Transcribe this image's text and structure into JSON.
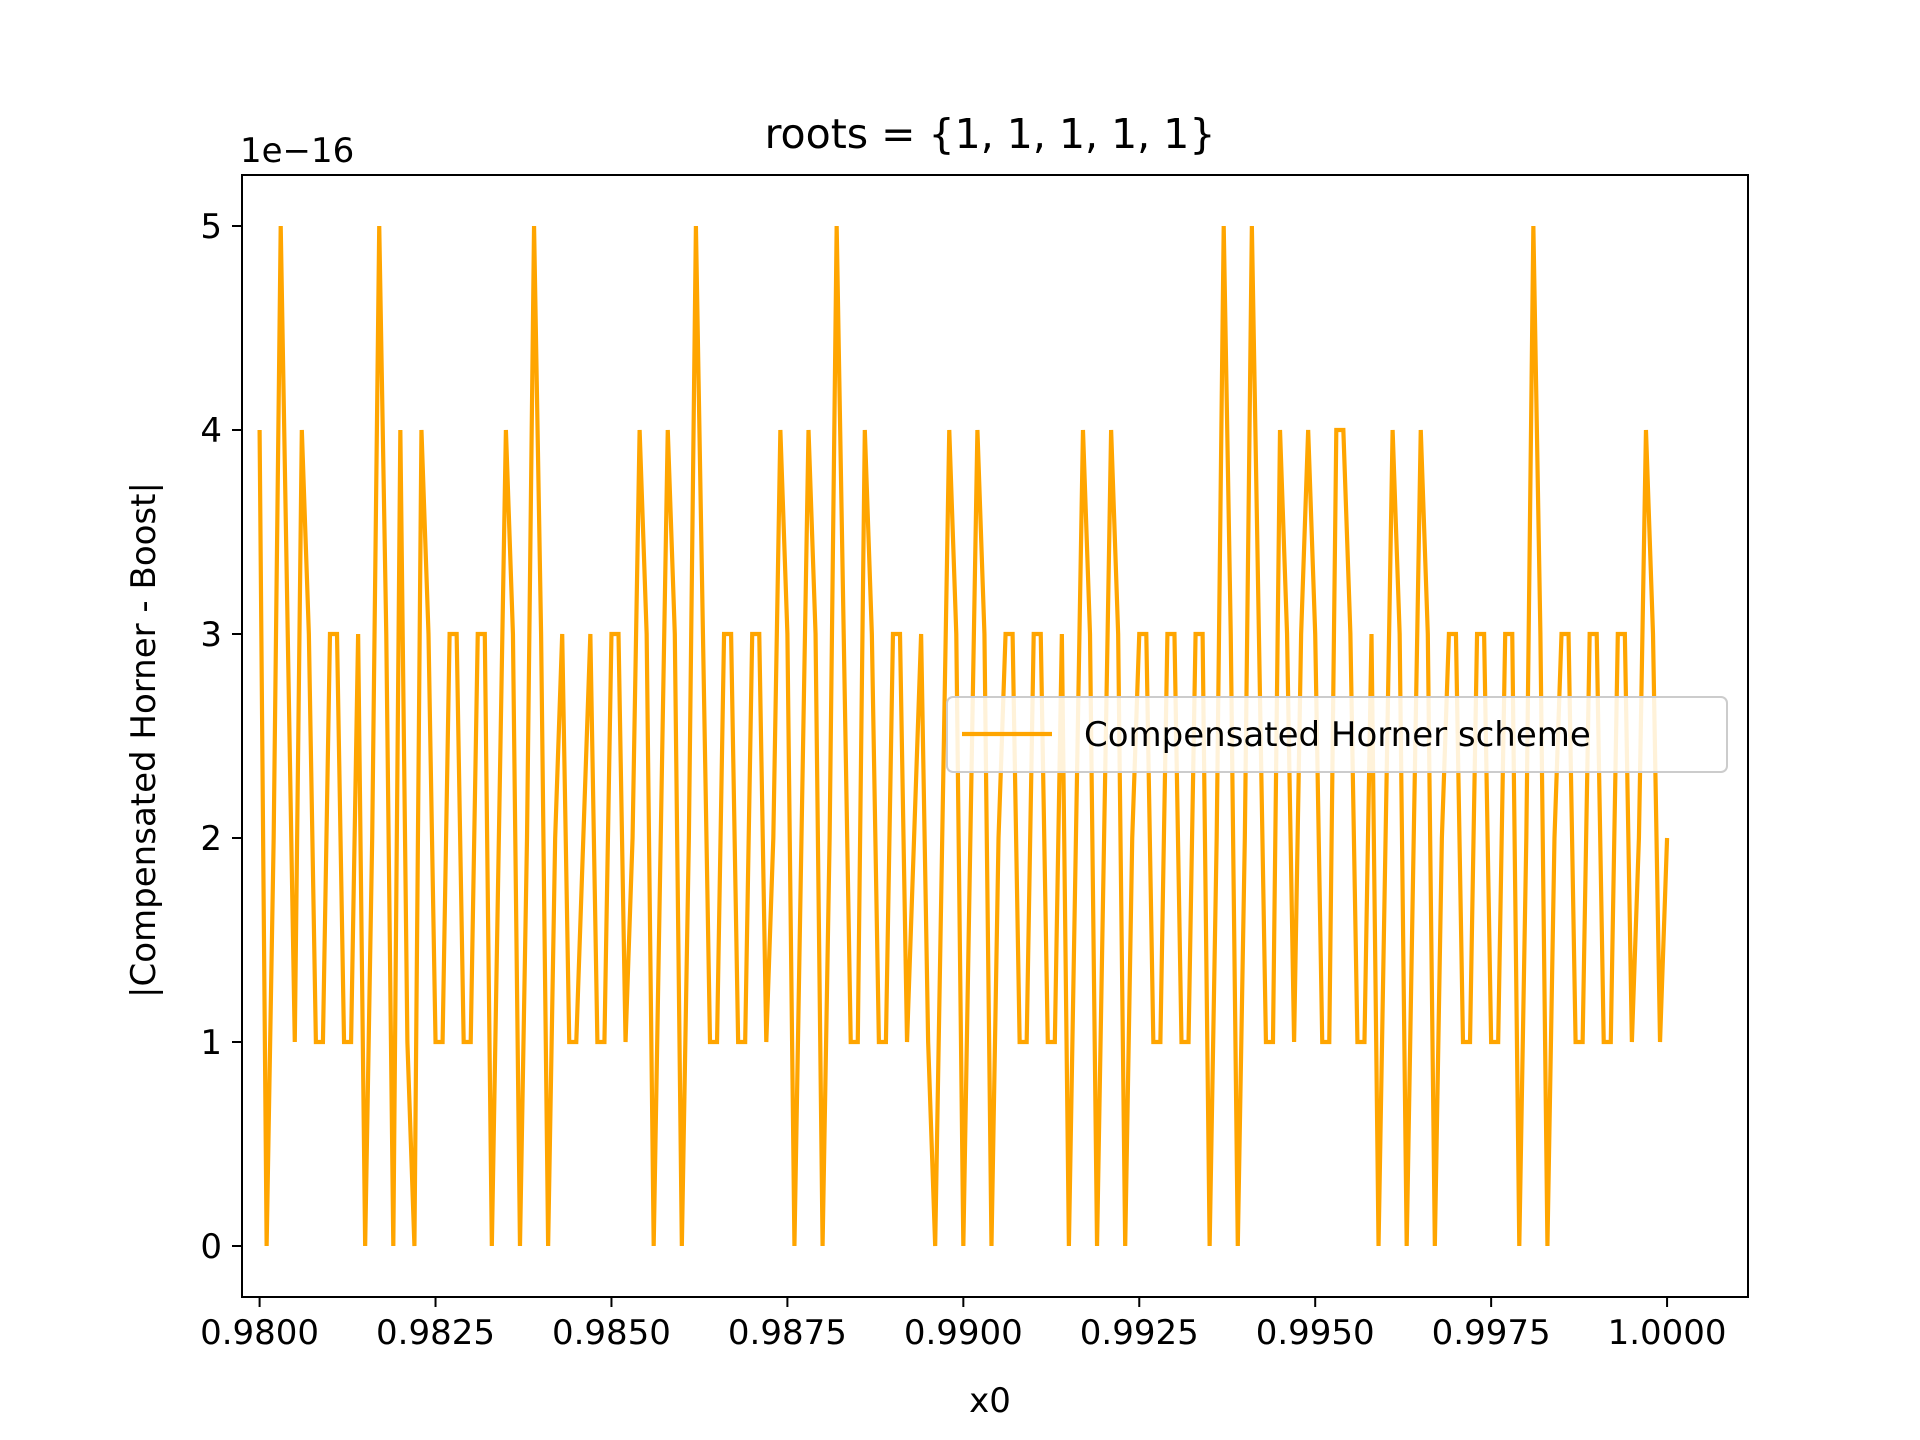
{
  "chart_data": {
    "type": "line",
    "title": "roots = {1, 1, 1, 1, 1}",
    "xlabel": "x0",
    "ylabel": "|Compensated Horner - Boost|",
    "y_offset_text": "1e−16",
    "y_scale_factor": 1e-16,
    "xlim": [
      0.97975,
      1.00115
    ],
    "ylim": [
      -0.25,
      5.25
    ],
    "x_ticks": [
      0.98,
      0.9825,
      0.985,
      0.9875,
      0.99,
      0.9925,
      0.995,
      0.9975,
      1.0
    ],
    "x_tick_labels": [
      "0.9800",
      "0.9825",
      "0.9850",
      "0.9875",
      "0.9900",
      "0.9925",
      "0.9950",
      "0.9975",
      "1.0000"
    ],
    "y_ticks": [
      0,
      1,
      2,
      3,
      4,
      5
    ],
    "y_tick_labels": [
      "0",
      "1",
      "2",
      "3",
      "4",
      "5"
    ],
    "grid": false,
    "legend_position": "center-right",
    "series": [
      {
        "name": "Compensated Horner scheme",
        "color": "#ffa500",
        "x_start": 0.98,
        "x_step": 0.0001,
        "values": [
          4,
          0,
          2,
          5,
          3,
          1,
          4,
          3,
          1,
          1,
          3,
          3,
          1,
          1,
          3,
          0,
          2,
          5,
          3,
          0,
          4,
          1,
          0,
          4,
          3,
          1,
          1,
          3,
          3,
          1,
          1,
          3,
          3,
          0,
          2,
          4,
          3,
          0,
          2,
          5,
          3,
          0,
          2,
          3,
          1,
          1,
          2,
          3,
          1,
          1,
          3,
          3,
          1,
          2,
          4,
          3,
          0,
          2,
          4,
          3,
          0,
          2,
          5,
          3,
          1,
          1,
          3,
          3,
          1,
          1,
          3,
          3,
          1,
          2,
          4,
          3,
          0,
          2,
          4,
          3,
          0,
          2,
          5,
          3,
          1,
          1,
          4,
          3,
          1,
          1,
          3,
          3,
          1,
          2,
          3,
          1,
          0,
          2,
          4,
          3,
          0,
          2,
          4,
          3,
          0,
          2,
          3,
          3,
          1,
          1,
          3,
          3,
          1,
          1,
          3,
          0,
          2,
          4,
          3,
          0,
          2,
          4,
          3,
          0,
          2,
          3,
          3,
          1,
          1,
          3,
          3,
          1,
          1,
          3,
          3,
          0,
          2,
          5,
          3,
          0,
          2,
          5,
          3,
          1,
          1,
          4,
          3,
          1,
          3,
          4,
          3,
          1,
          1,
          4,
          4,
          3,
          1,
          1,
          3,
          0,
          2,
          4,
          3,
          0,
          2,
          4,
          3,
          0,
          2,
          3,
          3,
          1,
          1,
          3,
          3,
          1,
          1,
          3,
          3,
          0,
          2,
          5,
          3,
          0,
          2,
          3,
          3,
          1,
          1,
          3,
          3,
          1,
          1,
          3,
          3,
          1,
          2,
          4,
          3,
          1,
          2
        ]
      }
    ]
  }
}
